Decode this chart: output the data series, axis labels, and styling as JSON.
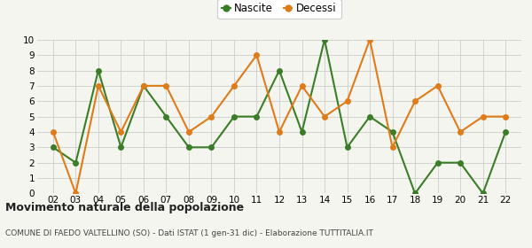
{
  "years": [
    2,
    3,
    4,
    5,
    6,
    7,
    8,
    9,
    10,
    11,
    12,
    13,
    14,
    15,
    16,
    17,
    18,
    19,
    20,
    21,
    22
  ],
  "nascite": [
    3,
    2,
    8,
    3,
    7,
    5,
    3,
    3,
    5,
    5,
    8,
    4,
    10,
    3,
    5,
    4,
    0,
    2,
    2,
    0,
    4
  ],
  "decessi": [
    4,
    0,
    7,
    4,
    7,
    7,
    4,
    5,
    7,
    9,
    4,
    7,
    5,
    6,
    10,
    3,
    6,
    7,
    4,
    5,
    5
  ],
  "nascite_color": "#3a7d27",
  "decessi_color": "#e07b1a",
  "ylim": [
    0,
    10
  ],
  "yticks": [
    0,
    1,
    2,
    3,
    4,
    5,
    6,
    7,
    8,
    9,
    10
  ],
  "title": "Movimento naturale della popolazione",
  "subtitle": "COMUNE DI FAEDO VALTELLINO (SO) - Dati ISTAT (1 gen-31 dic) - Elaborazione TUTTITALIA.IT",
  "legend_nascite": "Nascite",
  "legend_decessi": "Decessi",
  "bg_color": "#f5f5f0",
  "grid_color": "#cccccc",
  "marker_size": 5,
  "line_width": 1.5
}
